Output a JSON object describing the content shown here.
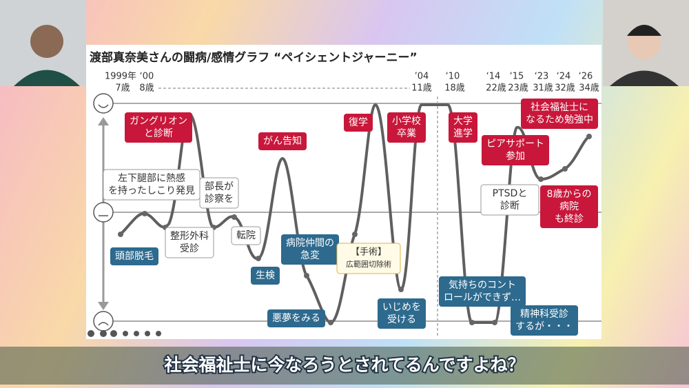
{
  "slide": {
    "title": "渡部真奈美さんの闘病/感情グラフ “ペイシェントジャーニー”",
    "years": [
      "1999年",
      "‘00",
      "’04",
      "‘10",
      "‘14",
      "‘15",
      "‘23",
      "‘24",
      "‘26"
    ],
    "ages": [
      "7歳",
      "8歳",
      "11歳",
      "18歳",
      "22歳",
      "23歳",
      "31歳",
      "32歳",
      "34歳"
    ],
    "events": [
      {
        "lines": [
          "ガングリオン",
          "と診断"
        ]
      },
      {
        "lines": [
          "がん告知"
        ]
      },
      {
        "lines": [
          "復学"
        ]
      },
      {
        "lines": [
          "小学校",
          "卒業"
        ]
      },
      {
        "lines": [
          "大学",
          "進学"
        ]
      },
      {
        "lines": [
          "社会福祉士に",
          "なるため勉強中"
        ]
      },
      {
        "lines": [
          "ピアサポート",
          "参加"
        ]
      },
      {
        "lines": [
          "8歳からの",
          "病院",
          "も終診"
        ]
      },
      {
        "lines": [
          "頭部脱毛"
        ]
      },
      {
        "lines": [
          "生検"
        ]
      },
      {
        "lines": [
          "病院仲間の",
          "急変"
        ]
      },
      {
        "lines": [
          "悪夢をみる"
        ]
      },
      {
        "lines": [
          "いじめを",
          "受ける"
        ]
      },
      {
        "lines": [
          "気持ちのコント",
          "ロールができず…"
        ]
      },
      {
        "lines": [
          "精神科受診",
          "するが・・・"
        ]
      },
      {
        "lines": [
          "左下腿部に熱感",
          "を持ったしこり発見"
        ]
      },
      {
        "lines": [
          "整形外科",
          "受診"
        ]
      },
      {
        "lines": [
          "部長が",
          "診察を"
        ]
      },
      {
        "lines": [
          "転院"
        ]
      },
      {
        "lines": [
          "PTSDと",
          "診断"
        ]
      },
      {
        "lines": [
          "【手術】",
          "広範囲切除術"
        ]
      }
    ]
  },
  "caption": "社会福祉士に今なろうとされてるんですよね？"
}
